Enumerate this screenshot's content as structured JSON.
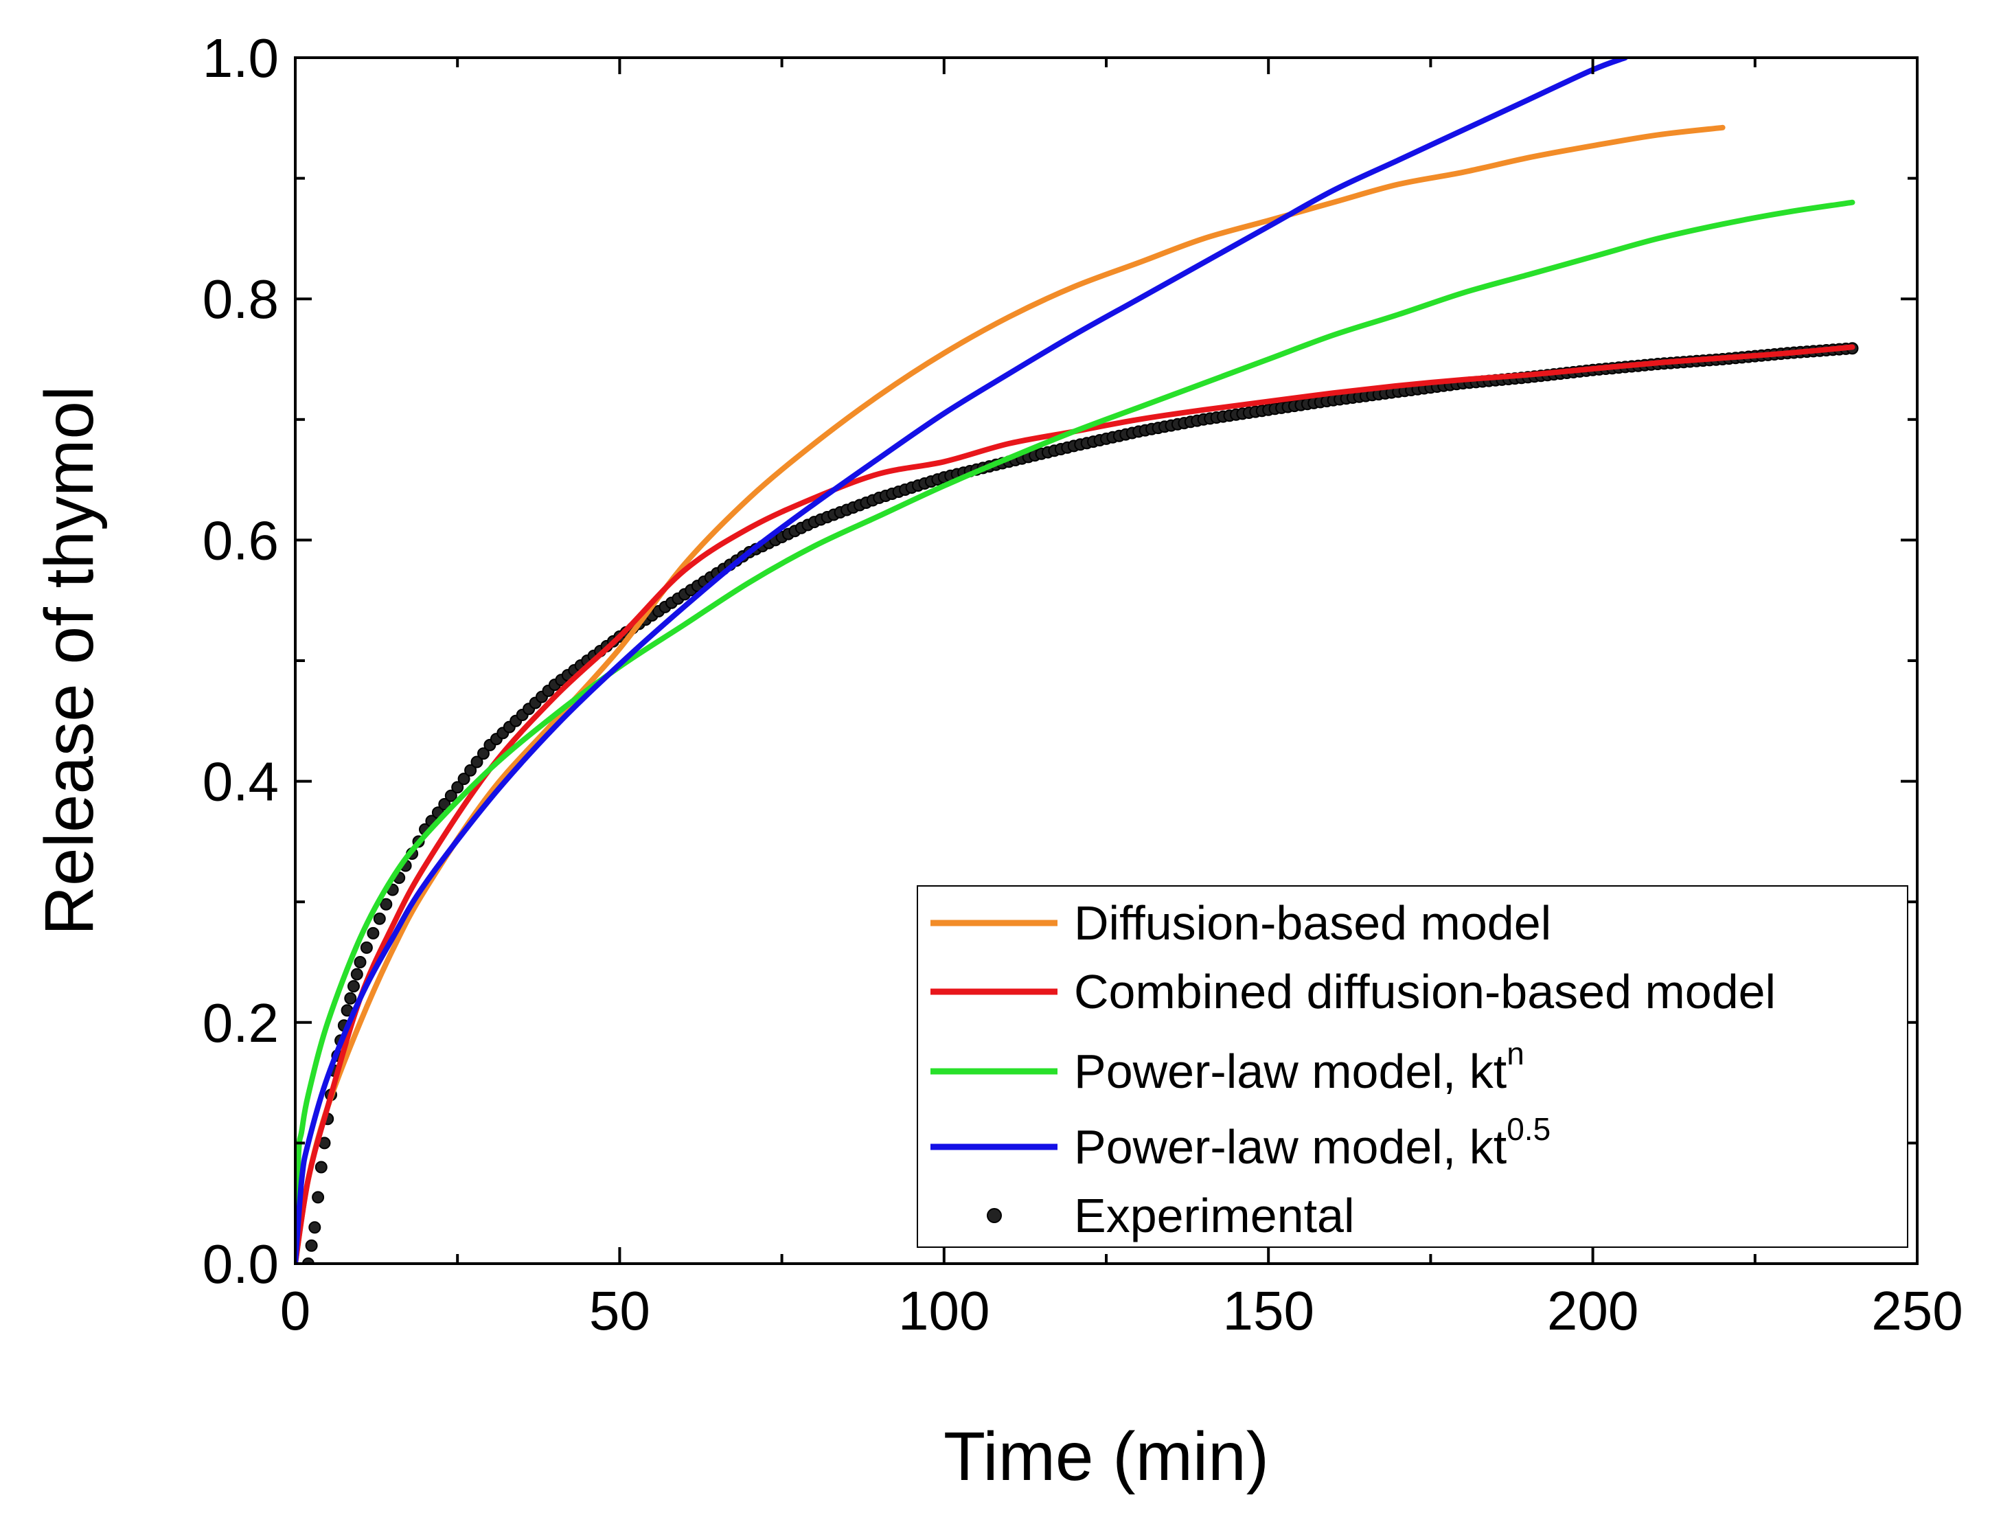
{
  "chart_data": {
    "type": "line",
    "xlabel": "Time (min)",
    "ylabel": "Release of thymol",
    "xlim": [
      0,
      250
    ],
    "ylim": [
      0.0,
      1.0
    ],
    "x_ticks": [
      "0",
      "50",
      "100",
      "150",
      "200",
      "250"
    ],
    "y_ticks": [
      "0.0",
      "0.2",
      "0.4",
      "0.6",
      "0.8",
      "1.0"
    ],
    "grid": false,
    "legend_position": "bottom-right",
    "series": [
      {
        "name": "Diffusion-based model",
        "color": "#f28c28",
        "points": [
          [
            0,
            0
          ],
          [
            2,
            0.07
          ],
          [
            5,
            0.13
          ],
          [
            10,
            0.2
          ],
          [
            15,
            0.26
          ],
          [
            20,
            0.31
          ],
          [
            30,
            0.39
          ],
          [
            40,
            0.45
          ],
          [
            50,
            0.51
          ],
          [
            60,
            0.58
          ],
          [
            70,
            0.635
          ],
          [
            80,
            0.68
          ],
          [
            90,
            0.72
          ],
          [
            100,
            0.755
          ],
          [
            110,
            0.785
          ],
          [
            120,
            0.81
          ],
          [
            130,
            0.83
          ],
          [
            140,
            0.85
          ],
          [
            150,
            0.865
          ],
          [
            160,
            0.88
          ],
          [
            170,
            0.895
          ],
          [
            180,
            0.905
          ],
          [
            190,
            0.917
          ],
          [
            200,
            0.927
          ],
          [
            210,
            0.936
          ],
          [
            220,
            0.942
          ]
        ]
      },
      {
        "name": "Combined diffusion-based model",
        "color": "#e8161b",
        "points": [
          [
            0,
            0
          ],
          [
            2,
            0.07
          ],
          [
            5,
            0.13
          ],
          [
            10,
            0.22
          ],
          [
            15,
            0.28
          ],
          [
            20,
            0.33
          ],
          [
            30,
            0.41
          ],
          [
            40,
            0.47
          ],
          [
            50,
            0.52
          ],
          [
            60,
            0.575
          ],
          [
            70,
            0.61
          ],
          [
            80,
            0.635
          ],
          [
            90,
            0.655
          ],
          [
            100,
            0.665
          ],
          [
            110,
            0.68
          ],
          [
            120,
            0.69
          ],
          [
            130,
            0.7
          ],
          [
            140,
            0.708
          ],
          [
            150,
            0.715
          ],
          [
            160,
            0.722
          ],
          [
            170,
            0.728
          ],
          [
            180,
            0.733
          ],
          [
            190,
            0.737
          ],
          [
            200,
            0.742
          ],
          [
            210,
            0.747
          ],
          [
            220,
            0.751
          ],
          [
            230,
            0.755
          ],
          [
            240,
            0.76
          ]
        ]
      },
      {
        "name": "Power-law model, kt^n",
        "color": "#28e02a",
        "points": [
          [
            0,
            0
          ],
          [
            0.5,
            0.09
          ],
          [
            1,
            0.11
          ],
          [
            2,
            0.14
          ],
          [
            5,
            0.2
          ],
          [
            10,
            0.27
          ],
          [
            15,
            0.32
          ],
          [
            20,
            0.355
          ],
          [
            30,
            0.41
          ],
          [
            40,
            0.455
          ],
          [
            50,
            0.495
          ],
          [
            60,
            0.53
          ],
          [
            70,
            0.565
          ],
          [
            80,
            0.595
          ],
          [
            90,
            0.62
          ],
          [
            100,
            0.645
          ],
          [
            110,
            0.668
          ],
          [
            120,
            0.69
          ],
          [
            130,
            0.71
          ],
          [
            140,
            0.73
          ],
          [
            150,
            0.75
          ],
          [
            160,
            0.77
          ],
          [
            170,
            0.787
          ],
          [
            180,
            0.805
          ],
          [
            190,
            0.82
          ],
          [
            200,
            0.835
          ],
          [
            210,
            0.85
          ],
          [
            220,
            0.862
          ],
          [
            230,
            0.872
          ],
          [
            240,
            0.88
          ]
        ]
      },
      {
        "name": "Power-law model, kt^0.5",
        "color": "#1410e6",
        "points": [
          [
            0,
            0
          ],
          [
            1,
            0.07
          ],
          [
            2,
            0.1
          ],
          [
            5,
            0.155
          ],
          [
            10,
            0.22
          ],
          [
            15,
            0.27
          ],
          [
            20,
            0.315
          ],
          [
            30,
            0.385
          ],
          [
            40,
            0.445
          ],
          [
            50,
            0.497
          ],
          [
            60,
            0.545
          ],
          [
            70,
            0.59
          ],
          [
            80,
            0.63
          ],
          [
            90,
            0.668
          ],
          [
            100,
            0.705
          ],
          [
            110,
            0.738
          ],
          [
            120,
            0.77
          ],
          [
            130,
            0.8
          ],
          [
            140,
            0.83
          ],
          [
            150,
            0.86
          ],
          [
            160,
            0.89
          ],
          [
            170,
            0.915
          ],
          [
            180,
            0.94
          ],
          [
            190,
            0.965
          ],
          [
            200,
            0.99
          ],
          [
            205,
            1.0
          ]
        ]
      }
    ],
    "scatter": {
      "name": "Experimental",
      "color": "#000000",
      "fn_points": [
        [
          2,
          0.0
        ],
        [
          3,
          0.03
        ],
        [
          4,
          0.08
        ],
        [
          5,
          0.12
        ],
        [
          6,
          0.16
        ],
        [
          8,
          0.21
        ],
        [
          10,
          0.25
        ],
        [
          15,
          0.31
        ],
        [
          20,
          0.36
        ],
        [
          30,
          0.43
        ],
        [
          40,
          0.48
        ],
        [
          50,
          0.52
        ],
        [
          60,
          0.555
        ],
        [
          70,
          0.59
        ],
        [
          80,
          0.615
        ],
        [
          90,
          0.635
        ],
        [
          100,
          0.652
        ],
        [
          110,
          0.665
        ],
        [
          120,
          0.678
        ],
        [
          130,
          0.69
        ],
        [
          140,
          0.7
        ],
        [
          150,
          0.708
        ],
        [
          160,
          0.716
        ],
        [
          170,
          0.723
        ],
        [
          180,
          0.73
        ],
        [
          190,
          0.735
        ],
        [
          200,
          0.741
        ],
        [
          210,
          0.746
        ],
        [
          220,
          0.75
        ],
        [
          230,
          0.755
        ],
        [
          240,
          0.759
        ]
      ]
    },
    "legend": [
      {
        "label": "Diffusion-based model",
        "sup": "",
        "kind": "line",
        "color": "#f28c28"
      },
      {
        "label": "Combined diffusion-based model",
        "sup": "",
        "kind": "line",
        "color": "#e8161b"
      },
      {
        "label": "Power-law model, kt",
        "sup": "n",
        "kind": "line",
        "color": "#28e02a"
      },
      {
        "label": "Power-law model, kt",
        "sup": "0.5",
        "kind": "line",
        "color": "#1410e6"
      },
      {
        "label": "Experimental",
        "sup": "",
        "kind": "marker",
        "color": "#000000"
      }
    ]
  }
}
